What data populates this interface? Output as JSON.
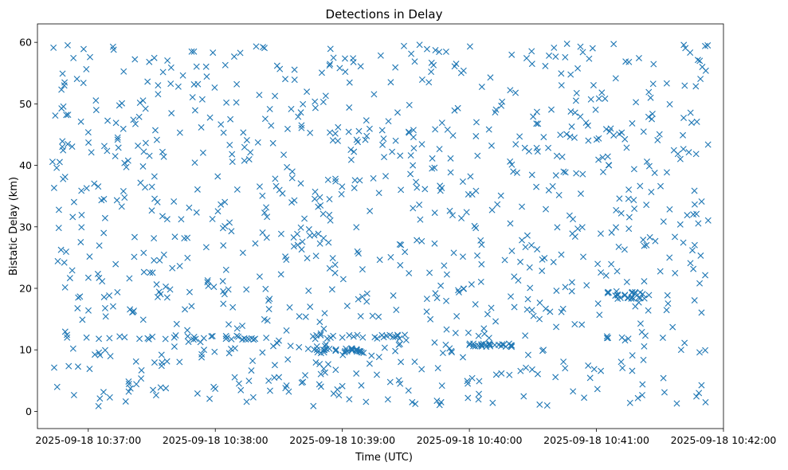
{
  "chart_data": {
    "type": "scatter",
    "title": "Detections in Delay",
    "xlabel": "Time (UTC)",
    "ylabel": "Bistatic Delay (km)",
    "x_start": "2025-09-18 10:36:43",
    "x_end": "2025-09-18 10:41:53",
    "xlim": [
      "2025-09-18 10:36:36",
      "2025-09-18 10:42:00"
    ],
    "ylim": [
      -2.8,
      63
    ],
    "x_ticks": [
      "2025-09-18 10:37:00",
      "2025-09-18 10:38:00",
      "2025-09-18 10:39:00",
      "2025-09-18 10:40:00",
      "2025-09-18 10:41:00",
      "2025-09-18 10:42:00"
    ],
    "y_ticks": [
      "0",
      "10",
      "20",
      "30",
      "40",
      "50",
      "60"
    ],
    "marker": "x",
    "grid": false,
    "legend": "none",
    "series_color": "#1f77b4",
    "n_points": 1100,
    "points": [
      [
        "2025-09-18 10:36:50",
        12.0
      ],
      [
        "2025-09-18 10:37:05",
        11.8
      ],
      [
        "2025-09-18 10:37:10",
        11.9
      ],
      [
        "2025-09-18 10:37:50",
        12.1
      ],
      [
        "2025-09-18 10:38:05",
        11.8
      ],
      [
        "2025-09-18 10:38:30",
        11.5
      ],
      [
        "2025-09-18 10:38:48",
        10.0
      ],
      [
        "2025-09-18 10:39:00",
        12.0
      ],
      [
        "2025-09-18 10:39:10",
        9.5
      ],
      [
        "2025-09-18 10:39:25",
        9.8
      ],
      [
        "2025-09-18 10:40:00",
        10.8
      ],
      [
        "2025-09-18 10:40:20",
        10.7
      ],
      [
        "2025-09-18 10:40:35",
        10.0
      ],
      [
        "2025-09-18 10:41:05",
        12.2
      ],
      [
        "2025-09-18 10:41:10",
        19.0
      ],
      [
        "2025-09-18 10:41:20",
        18.5
      ],
      [
        "2025-09-18 10:41:40",
        10.0
      ],
      [
        "2025-09-18 10:37:12",
        58.8
      ],
      [
        "2025-09-18 10:39:40",
        58.9
      ],
      [
        "2025-09-18 10:41:50",
        56.0
      ]
    ]
  }
}
